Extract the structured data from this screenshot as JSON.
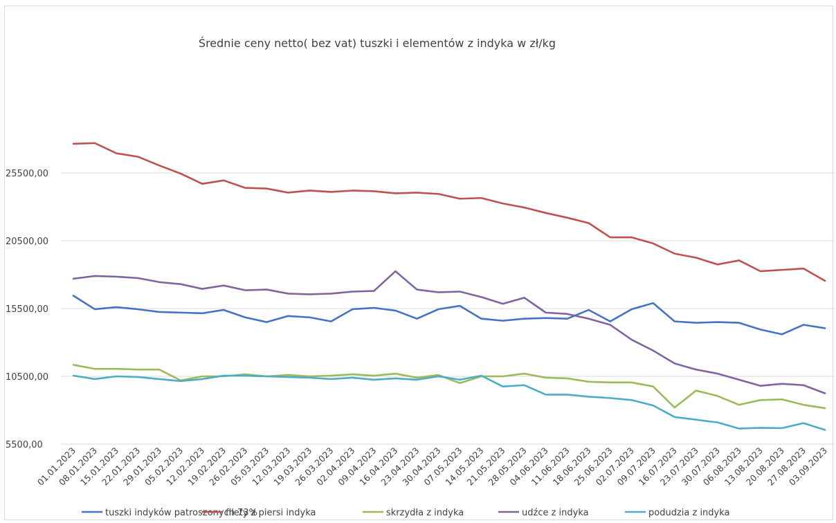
{
  "chart_data": {
    "type": "line",
    "title": "Średnie ceny netto( bez vat) tuszki i elementów z indyka w zł/kg",
    "xlabel": "",
    "ylabel": "",
    "ylim": [
      5500,
      25500
    ],
    "yticks": [
      "25500,00",
      "20500,00",
      "15500,00",
      "10500,00",
      "5500,00"
    ],
    "ytick_values": [
      25500,
      20500,
      15500,
      10500,
      5500
    ],
    "grid": true,
    "legend_position": "bottom",
    "categories": [
      "01.01.2023",
      "08.01.2023",
      "15.01.2023",
      "22.01.2023",
      "29.01.2023",
      "05.02.2023",
      "12.02.2023",
      "19.02.2023",
      "26.02.2023",
      "05.03.2023",
      "12.03.2023",
      "19.03.2023",
      "26.03.2023",
      "02.04.2023",
      "09.04.2023",
      "16.04.2023",
      "23.04.2023",
      "30.04.2023",
      "07.05.2023",
      "14.05.2023",
      "21.05.2023",
      "28.05.2023",
      "04.06.2023",
      "11.06.2023",
      "18.06.2023",
      "25.06.2023",
      "02.07.2023",
      "09.07.2023",
      "16.07.2023",
      "23.07.2023",
      "30.07.2023",
      "06.08.2023",
      "13.08.2023",
      "20.08.2023",
      "27.08.2023",
      "03.09.2023"
    ],
    "series": [
      {
        "name": "tuszki indyków patroszonych 73%",
        "color": "#4472c4",
        "values": [
          16450,
          15450,
          15600,
          15450,
          15250,
          15200,
          15150,
          15400,
          14850,
          14500,
          14950,
          14850,
          14550,
          15450,
          15550,
          15350,
          14750,
          15450,
          15700,
          14750,
          14600,
          14750,
          14800,
          14750,
          15400,
          14550,
          15450,
          15900,
          14550,
          14450,
          14500,
          14450,
          13950,
          13600,
          14300,
          14050
        ]
      },
      {
        "name": "filety z piersi indyka",
        "color": "#c0504d",
        "values": [
          27650,
          27700,
          26950,
          26700,
          26050,
          25450,
          24700,
          24950,
          24400,
          24350,
          24050,
          24200,
          24100,
          24200,
          24150,
          24000,
          24050,
          23950,
          23600,
          23650,
          23250,
          22950,
          22550,
          22200,
          21800,
          20750,
          20750,
          20300,
          19550,
          19250,
          18750,
          19050,
          18250,
          18350,
          18450,
          17550
        ]
      },
      {
        "name": "skrzydła z indyka",
        "color": "#9bbb59",
        "values": [
          11350,
          11050,
          11050,
          11000,
          11000,
          10200,
          10500,
          10500,
          10650,
          10500,
          10600,
          10500,
          10550,
          10650,
          10550,
          10700,
          10400,
          10600,
          10000,
          10500,
          10500,
          10700,
          10400,
          10350,
          10100,
          10050,
          10050,
          9750,
          8200,
          9450,
          9050,
          8400,
          8750,
          8800,
          8400,
          8150
        ]
      },
      {
        "name": "udźce z indyka",
        "color": "#8064a2",
        "values": [
          17700,
          17900,
          17850,
          17750,
          17450,
          17300,
          16950,
          17200,
          16850,
          16900,
          16600,
          16550,
          16600,
          16750,
          16800,
          18250,
          16900,
          16700,
          16750,
          16350,
          15850,
          16300,
          15200,
          15100,
          14750,
          14300,
          13200,
          12400,
          11450,
          11000,
          10700,
          10250,
          9800,
          9950,
          9850,
          9250
        ]
      },
      {
        "name": "podudzia z indyka",
        "color": "#4bacc6",
        "values": [
          10550,
          10300,
          10500,
          10450,
          10300,
          10150,
          10300,
          10550,
          10550,
          10500,
          10450,
          10400,
          10300,
          10400,
          10250,
          10350,
          10250,
          10500,
          10250,
          10550,
          9750,
          9850,
          9150,
          9150,
          9000,
          8900,
          8750,
          8350,
          7500,
          7300,
          7100,
          6650,
          6700,
          6680,
          7050,
          6550
        ]
      }
    ]
  }
}
